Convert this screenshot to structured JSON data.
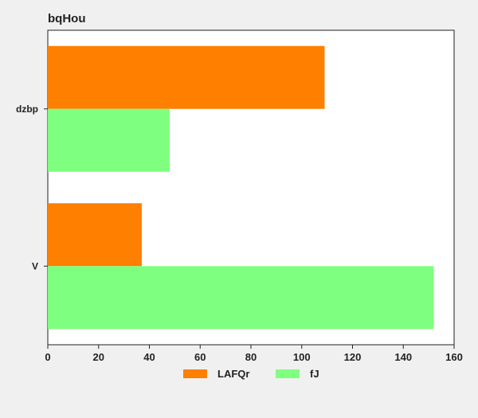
{
  "chart_data": {
    "type": "bar",
    "orientation": "horizontal",
    "title": "bqHou",
    "categories": [
      "dzbp",
      "V"
    ],
    "series": [
      {
        "name": "LAFQr",
        "values": [
          109,
          37
        ],
        "color": "#ff7f00"
      },
      {
        "name": "fJ",
        "values": [
          48,
          152
        ],
        "color": "#7fff7f"
      }
    ],
    "xlim": [
      0,
      160
    ],
    "xticks": [
      0,
      20,
      40,
      60,
      80,
      100,
      120,
      140,
      160
    ],
    "xlabel": "",
    "ylabel": "",
    "grid": false,
    "legend_position": "bottom-center",
    "colors": {
      "background": "#f0f0f0",
      "plot_background": "#ffffff",
      "axis": "#222222"
    }
  }
}
